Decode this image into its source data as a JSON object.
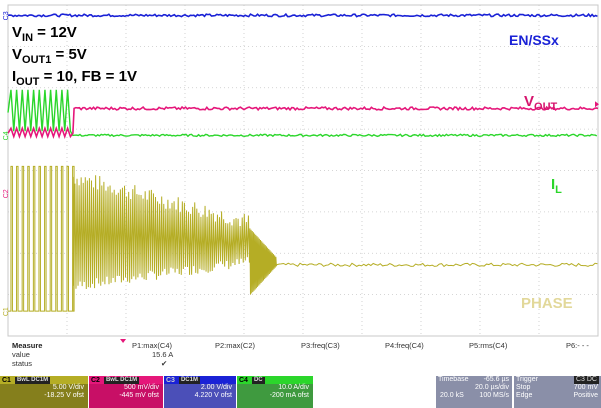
{
  "conditions": {
    "vin": {
      "main": "V",
      "sub": "IN",
      "rest": " = 12V"
    },
    "vout1": {
      "main": "V",
      "sub": "OUT1",
      "rest": " = 5V"
    },
    "iout": {
      "main": "I",
      "sub": "OUT",
      "rest": " = 10, FB = 1V"
    }
  },
  "trace_labels": {
    "en": "EN/SSx",
    "vout": {
      "main": "V",
      "sub": "OUT"
    },
    "il": {
      "main": "I",
      "sub": "L"
    },
    "phase": "PHASE"
  },
  "channel_markers": [
    "C3",
    "C4",
    "C2",
    "C1"
  ],
  "colors": {
    "ch1": "#b5ad25",
    "ch2": "#e5177a",
    "ch3": "#1a22d6",
    "ch4": "#2bd62b",
    "grid": "#c8c8c8",
    "phase_label": "#e2d89a"
  },
  "chart_data": {
    "type": "line",
    "title": "",
    "x_divisions": 10,
    "y_divisions": 8,
    "grid": true,
    "series": [
      {
        "name": "EN/SSx",
        "channel": "C3",
        "behavior": "constant high",
        "level_div": 7.75
      },
      {
        "name": "VOUT",
        "channel": "C2",
        "behavior": "low triangular ripple until ~1.1 div, then high constant",
        "level_low_div": 4.9,
        "level_high_div": 5.5
      },
      {
        "name": "IL",
        "channel": "C4",
        "behavior": "triangular ripple until ~1.1 div, then zero",
        "ripple_center_div": 5.4,
        "level_after_div": 4.85
      },
      {
        "name": "PHASE",
        "channel": "C1",
        "behavior": "switching pulses decaying to ~4.1 div, then settle",
        "baseline_div": 0.6
      }
    ]
  },
  "measure": {
    "heading": "Measure",
    "row_labels": [
      "value",
      "status"
    ],
    "columns": [
      {
        "name": "P1:max(C4)",
        "value": "15.6 A",
        "status": "✔"
      },
      {
        "name": "P2:max(C2)",
        "value": "",
        "status": ""
      },
      {
        "name": "P3:freq(C3)",
        "value": "",
        "status": ""
      },
      {
        "name": "P4:freq(C4)",
        "value": "",
        "status": ""
      },
      {
        "name": "P5:rms(C4)",
        "value": "",
        "status": ""
      },
      {
        "name": "P6:- - -",
        "value": "",
        "status": ""
      }
    ]
  },
  "channels": [
    {
      "id": "C1",
      "tag": "BwL DC1M",
      "vdiv": "5.00 V/div",
      "offset": "-18.25 V ofst"
    },
    {
      "id": "C2",
      "tag": "BwL DC1M",
      "vdiv": "500 mV/div",
      "offset": "-445 mV ofst"
    },
    {
      "id": "C3",
      "tag": "DC1M",
      "vdiv": "2.00 V/div",
      "offset": "4.220 V ofst"
    },
    {
      "id": "C4",
      "tag": "DC",
      "vdiv": "10.0 A/div",
      "offset": "-200 mA ofst"
    }
  ],
  "timebase": {
    "label": "Timebase",
    "offset": "-65.6 µs",
    "per_div": "20.0 µs/div",
    "samples": "20.0 kS",
    "rate": "100 MS/s"
  },
  "trigger": {
    "label": "Trigger",
    "tag": "C3 DC",
    "mode": "Stop",
    "level": "700 mV",
    "type": "Edge",
    "slope": "Positive"
  }
}
